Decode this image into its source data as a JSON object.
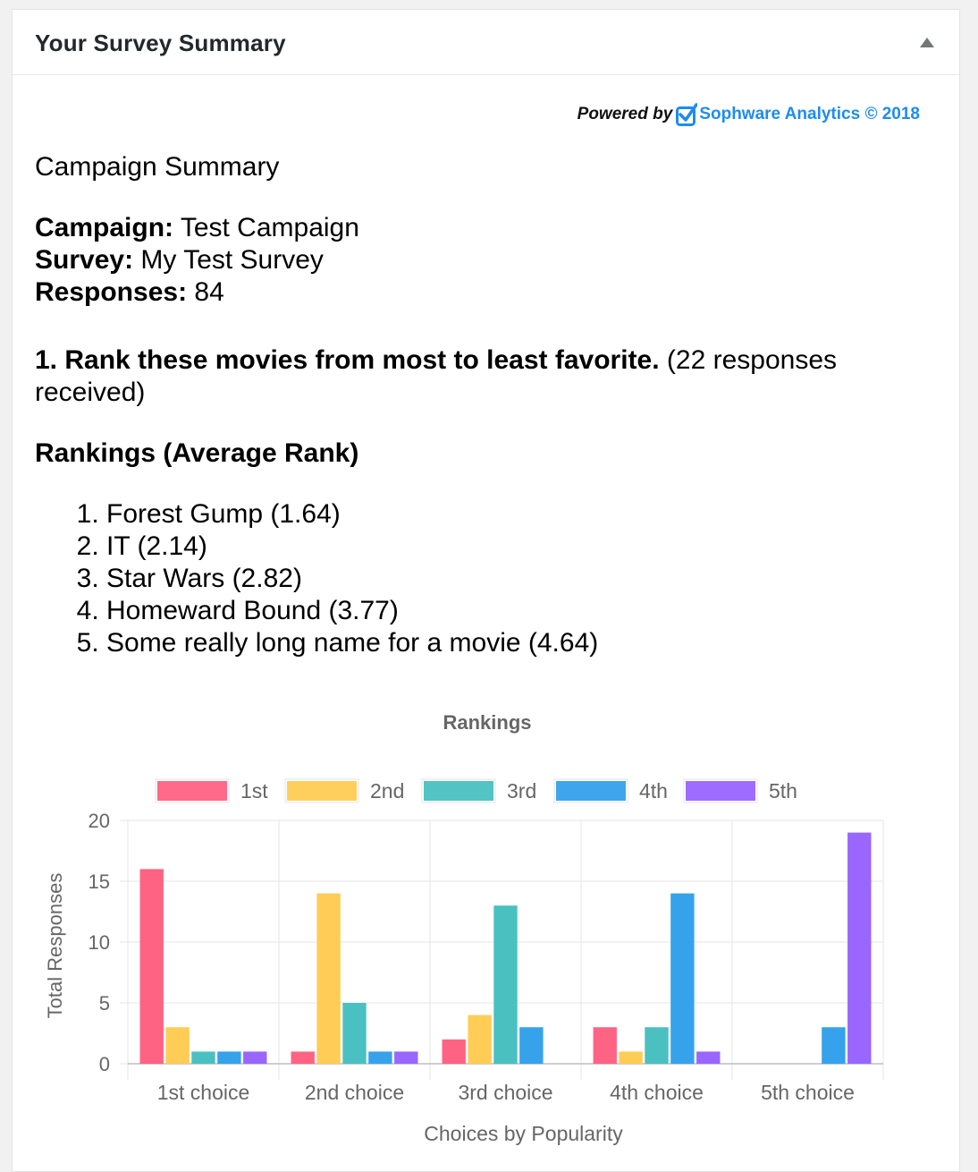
{
  "header": {
    "title": "Your Survey Summary"
  },
  "branding": {
    "powered_by": "Powered by",
    "link_text": "Sophware Analytics © 2018",
    "accent": "#1e8cee"
  },
  "summary": {
    "section_title": "Campaign Summary",
    "campaign_label": "Campaign:",
    "campaign_value": "Test Campaign",
    "survey_label": "Survey:",
    "survey_value": "My Test Survey",
    "responses_label": "Responses:",
    "responses_value": "84"
  },
  "question": {
    "text": "1. Rank these movies from most to least favorite.",
    "responses_note": "(22 responses received)"
  },
  "rankings": {
    "heading": "Rankings (Average Rank)",
    "items": [
      "Forest Gump (1.64)",
      "IT (2.14)",
      "Star Wars (2.82)",
      "Homeward Bound (3.77)",
      "Some really long name for a movie (4.64)"
    ]
  },
  "chart_data": {
    "type": "bar",
    "title": "Rankings",
    "xlabel": "Choices by Popularity",
    "ylabel": "Total Responses",
    "ylim": [
      0,
      20
    ],
    "yticks": [
      0,
      5,
      10,
      15,
      20
    ],
    "grid": true,
    "legend_position": "top",
    "categories": [
      "1st choice",
      "2nd choice",
      "3rd choice",
      "4th choice",
      "5th choice"
    ],
    "series": [
      {
        "name": "1st",
        "color": "#ff6384",
        "values": [
          16,
          1,
          2,
          3,
          0
        ]
      },
      {
        "name": "2nd",
        "color": "#ffcd56",
        "values": [
          3,
          14,
          4,
          1,
          0
        ]
      },
      {
        "name": "3rd",
        "color": "#4bc0c0",
        "values": [
          1,
          5,
          13,
          3,
          0
        ]
      },
      {
        "name": "4th",
        "color": "#36a2eb",
        "values": [
          1,
          1,
          3,
          14,
          3
        ]
      },
      {
        "name": "5th",
        "color": "#9966ff",
        "values": [
          1,
          1,
          0,
          1,
          19
        ]
      }
    ]
  }
}
